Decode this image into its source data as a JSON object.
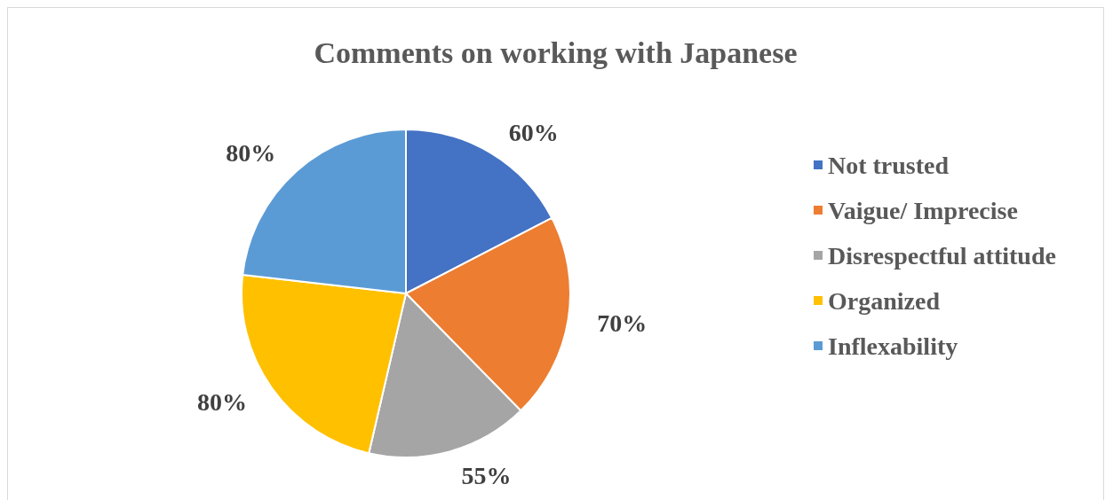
{
  "chart_data": {
    "type": "pie",
    "title": "Comments on working with Japanese",
    "categories": [
      "Not trusted",
      "Vaigue/ Imprecise",
      "Disrespectful attitude",
      "Organized",
      "Inflexability"
    ],
    "values": [
      60,
      70,
      55,
      80,
      80
    ],
    "value_labels": [
      "60%",
      "70%",
      "55%",
      "80%",
      "80%"
    ],
    "colors": [
      "#4472c4",
      "#ed7d31",
      "#a5a5a5",
      "#ffc000",
      "#5b9bd5"
    ],
    "legend": "right"
  }
}
